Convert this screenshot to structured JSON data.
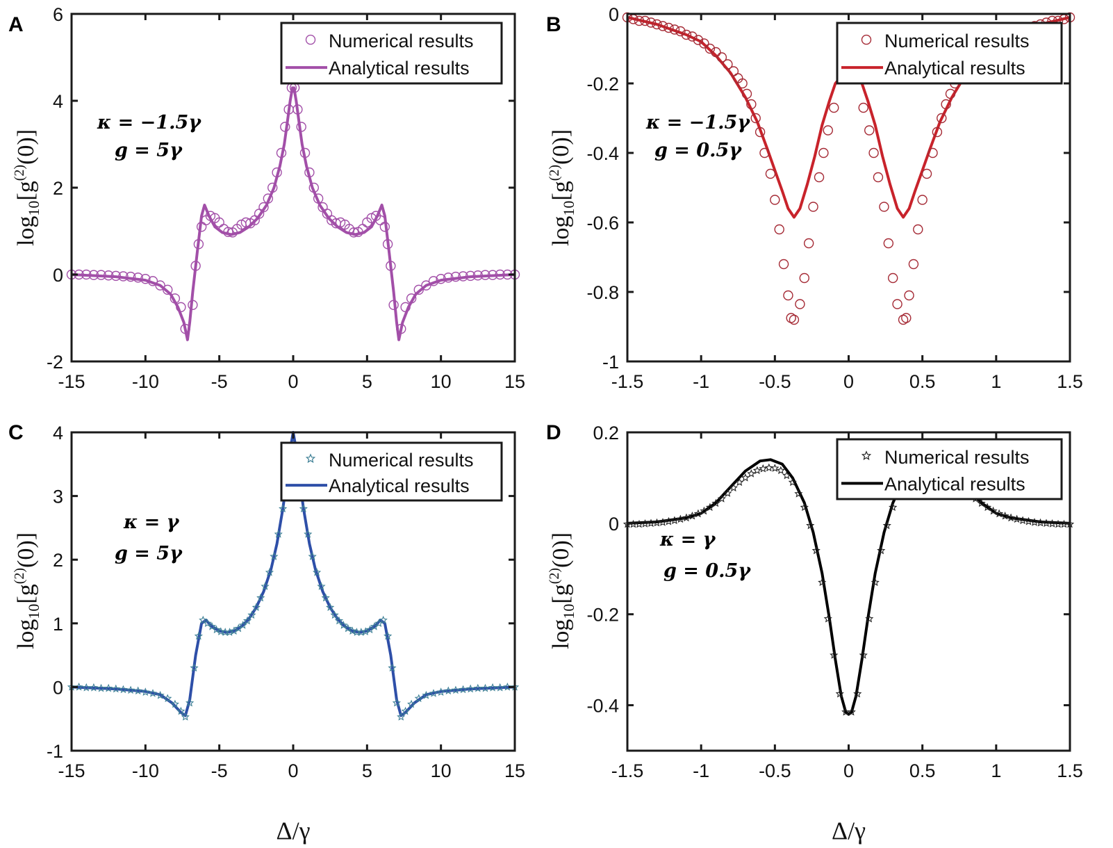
{
  "chart_data": [
    {
      "panel": "A",
      "type": "line",
      "xlim": [
        -15,
        15
      ],
      "ylim": [
        -2,
        6
      ],
      "xticks": [
        "-15",
        "-10",
        "-5",
        "0",
        "5",
        "10",
        "15"
      ],
      "xtick_values": [
        -15,
        -10,
        -5,
        0,
        5,
        10,
        15
      ],
      "yticks": [
        "-2",
        "0",
        "2",
        "4",
        "6"
      ],
      "ytick_values": [
        -2,
        0,
        2,
        4,
        6
      ],
      "ylabel": {
        "pre": "log",
        "sub": "10",
        "mid": "[g",
        "sup": "(2)",
        "post": "(0)]"
      },
      "annotation": [
        "κ = −1.5γ",
        "g = 5γ"
      ],
      "legend": {
        "position": "top-right",
        "numerical": "Numerical results",
        "analytical": "Analytical results"
      },
      "color": "#a24fa8",
      "marker": "circle",
      "symmetric": true,
      "analytical": {
        "x": [
          -15,
          -12,
          -10,
          -9,
          -8.3,
          -7.8,
          -7.4,
          -7.15,
          -7.0,
          -6.8,
          -6.5,
          -6.2,
          -6.0,
          -5.7,
          -5.3,
          -4.8,
          -4.2,
          -3.6,
          -3,
          -2.4,
          -1.8,
          -1.3,
          -0.9,
          -0.6,
          -0.4,
          -0.2,
          -0.05,
          0
        ],
        "y": [
          0,
          -0.05,
          -0.13,
          -0.25,
          -0.45,
          -0.75,
          -1.1,
          -1.5,
          -1.1,
          -0.4,
          0.5,
          1.35,
          1.6,
          1.35,
          1.1,
          0.97,
          0.92,
          0.97,
          1.1,
          1.3,
          1.6,
          2.0,
          2.5,
          3.0,
          3.5,
          4.0,
          4.3,
          4.25
        ]
      },
      "numerical": {
        "x": [
          -15,
          -14.5,
          -14,
          -13.5,
          -13,
          -12.5,
          -12,
          -11.5,
          -11,
          -10.5,
          -10,
          -9.5,
          -9,
          -8.5,
          -8,
          -7.6,
          -7.3,
          -6.8,
          -6.6,
          -6.4,
          -6.2,
          -5.9,
          -5.6,
          -5.3,
          -5.0,
          -4.7,
          -4.4,
          -4.1,
          -3.8,
          -3.5,
          -3.2,
          -2.9,
          -2.6,
          -2.3,
          -2.0,
          -1.7,
          -1.4,
          -1.1,
          -0.8,
          -0.55,
          -0.3,
          -0.1
        ],
        "y": [
          0,
          0,
          0,
          -0.01,
          -0.01,
          -0.02,
          -0.03,
          -0.04,
          -0.05,
          -0.07,
          -0.1,
          -0.15,
          -0.25,
          -0.35,
          -0.55,
          -0.75,
          -1.25,
          -0.7,
          0.2,
          0.7,
          1.1,
          1.25,
          1.35,
          1.3,
          1.2,
          1.05,
          0.98,
          0.97,
          1.05,
          1.15,
          1.2,
          1.18,
          1.25,
          1.4,
          1.55,
          1.75,
          2.0,
          2.35,
          2.8,
          3.4,
          3.8,
          4.3
        ]
      }
    },
    {
      "panel": "B",
      "type": "line",
      "xlim": [
        -1.5,
        1.5
      ],
      "ylim": [
        -1,
        0
      ],
      "xticks": [
        "-1.5",
        "-1",
        "-0.5",
        "0",
        "0.5",
        "1",
        "1.5"
      ],
      "xtick_values": [
        -1.5,
        -1,
        -0.5,
        0,
        0.5,
        1,
        1.5
      ],
      "yticks": [
        "-1",
        "-0.8",
        "-0.6",
        "-0.4",
        "-0.2",
        "0"
      ],
      "ytick_values": [
        -1,
        -0.8,
        -0.6,
        -0.4,
        -0.2,
        0
      ],
      "ylabel": {
        "pre": "log",
        "sub": "10",
        "mid": "[g",
        "sup": "(2)",
        "post": "(0)]"
      },
      "annotation": [
        "κ = −1.5γ",
        "g = 0.5γ"
      ],
      "legend": {
        "position": "top-right",
        "numerical": "Numerical results",
        "analytical": "Analytical results"
      },
      "color": "#c8232b",
      "marker_color": "#a52a35",
      "marker": "circle",
      "symmetric": true,
      "analytical": {
        "x": [
          -1.5,
          -1.3,
          -1.1,
          -1.0,
          -0.9,
          -0.8,
          -0.7,
          -0.62,
          -0.55,
          -0.5,
          -0.45,
          -0.41,
          -0.37,
          -0.33,
          -0.28,
          -0.23,
          -0.18,
          -0.13,
          -0.09,
          -0.05,
          0
        ],
        "y": [
          -0.01,
          -0.03,
          -0.06,
          -0.08,
          -0.12,
          -0.17,
          -0.24,
          -0.31,
          -0.39,
          -0.45,
          -0.51,
          -0.56,
          -0.585,
          -0.56,
          -0.49,
          -0.41,
          -0.32,
          -0.25,
          -0.2,
          -0.18,
          -0.18
        ]
      },
      "numerical": {
        "x": [
          -1.5,
          -1.46,
          -1.42,
          -1.38,
          -1.34,
          -1.3,
          -1.26,
          -1.22,
          -1.18,
          -1.14,
          -1.1,
          -1.06,
          -1.02,
          -0.98,
          -0.94,
          -0.9,
          -0.86,
          -0.82,
          -0.78,
          -0.75,
          -0.72,
          -0.69,
          -0.66,
          -0.63,
          -0.6,
          -0.57,
          -0.53,
          -0.5,
          -0.47,
          -0.44,
          -0.41,
          -0.39,
          -0.37,
          -0.33,
          -0.3,
          -0.27,
          -0.24,
          -0.2,
          -0.17,
          -0.14,
          -0.1
        ],
        "y": [
          -0.01,
          -0.015,
          -0.02,
          -0.02,
          -0.025,
          -0.03,
          -0.035,
          -0.04,
          -0.045,
          -0.05,
          -0.06,
          -0.065,
          -0.075,
          -0.085,
          -0.1,
          -0.11,
          -0.125,
          -0.145,
          -0.165,
          -0.185,
          -0.2,
          -0.23,
          -0.26,
          -0.3,
          -0.34,
          -0.4,
          -0.46,
          -0.535,
          -0.62,
          -0.72,
          -0.81,
          -0.875,
          -0.88,
          -0.835,
          -0.76,
          -0.66,
          -0.555,
          -0.47,
          -0.4,
          -0.335,
          -0.27
        ]
      }
    },
    {
      "panel": "C",
      "type": "line",
      "xlim": [
        -15,
        15
      ],
      "ylim": [
        -1,
        4
      ],
      "xticks": [
        "-15",
        "-10",
        "-5",
        "0",
        "5",
        "10",
        "15"
      ],
      "xtick_values": [
        -15,
        -10,
        -5,
        0,
        5,
        10,
        15
      ],
      "yticks": [
        "-1",
        "0",
        "1",
        "2",
        "3",
        "4"
      ],
      "ytick_values": [
        -1,
        0,
        1,
        2,
        3,
        4
      ],
      "ylabel": {
        "pre": "log",
        "sub": "10",
        "mid": "[g",
        "sup": "(2)",
        "post": "(0)]"
      },
      "xlabel": "Δ/γ",
      "annotation": [
        "κ = γ",
        "g = 5γ"
      ],
      "legend": {
        "position": "top-right",
        "numerical": "Numerical results",
        "analytical": "Analytical results"
      },
      "color": "#2e4fa8",
      "marker_color": "#3d7f95",
      "marker": "star",
      "symmetric": true,
      "analytical": {
        "x": [
          -15,
          -12,
          -10,
          -9,
          -8.2,
          -7.6,
          -7.3,
          -7.0,
          -6.6,
          -6.2,
          -5.9,
          -5.5,
          -5.0,
          -4.5,
          -4.0,
          -3.5,
          -3.0,
          -2.5,
          -2.0,
          -1.5,
          -1.1,
          -0.7,
          -0.4,
          -0.15,
          0
        ],
        "y": [
          0,
          -0.03,
          -0.07,
          -0.12,
          -0.25,
          -0.4,
          -0.45,
          -0.2,
          0.5,
          1.0,
          1.05,
          0.95,
          0.88,
          0.86,
          0.88,
          0.95,
          1.07,
          1.25,
          1.5,
          1.85,
          2.25,
          2.8,
          3.3,
          3.8,
          4.0
        ]
      },
      "numerical": {
        "x": [
          -15,
          -14.5,
          -14,
          -13.5,
          -13,
          -12.5,
          -12,
          -11.5,
          -11,
          -10.5,
          -10,
          -9.5,
          -9,
          -8.5,
          -8,
          -7.6,
          -7.3,
          -7.0,
          -6.7,
          -6.4,
          -6.1,
          -5.8,
          -5.5,
          -5.2,
          -4.9,
          -4.6,
          -4.3,
          -4.0,
          -3.7,
          -3.4,
          -3.1,
          -2.8,
          -2.5,
          -2.2,
          -1.9,
          -1.6,
          -1.3,
          -1.0,
          -0.7,
          -0.4
        ],
        "y": [
          0,
          0,
          -0.01,
          -0.01,
          -0.02,
          -0.02,
          -0.03,
          -0.04,
          -0.05,
          -0.06,
          -0.08,
          -0.1,
          -0.13,
          -0.18,
          -0.27,
          -0.38,
          -0.47,
          -0.25,
          0.3,
          0.8,
          1.05,
          1.0,
          0.95,
          0.9,
          0.87,
          0.86,
          0.86,
          0.88,
          0.92,
          0.97,
          1.04,
          1.13,
          1.25,
          1.4,
          1.58,
          1.8,
          2.05,
          2.4,
          2.8,
          3.35
        ]
      }
    },
    {
      "panel": "D",
      "type": "line",
      "xlim": [
        -1.5,
        1.5
      ],
      "ylim": [
        -0.5,
        0.2
      ],
      "xticks": [
        "-1.5",
        "-1",
        "-0.5",
        "0",
        "0.5",
        "1",
        "1.5"
      ],
      "xtick_values": [
        -1.5,
        -1,
        -0.5,
        0,
        0.5,
        1,
        1.5
      ],
      "yticks": [
        "-0.4",
        "-0.2",
        "0",
        "0.2"
      ],
      "ytick_values": [
        -0.4,
        -0.2,
        0,
        0.2
      ],
      "ylabel": {
        "pre": "log",
        "sub": "10",
        "mid": "[g",
        "sup": "(2)",
        "post": "(0)]"
      },
      "xlabel": "Δ/γ",
      "annotation": [
        "κ = γ",
        "g = 0.5γ"
      ],
      "legend": {
        "position": "top-right",
        "numerical": "Numerical results",
        "analytical": "Analytical results"
      },
      "color": "#000000",
      "marker_color": "#222222",
      "marker": "star",
      "symmetric": true,
      "analytical": {
        "x": [
          -1.5,
          -1.3,
          -1.1,
          -1.0,
          -0.9,
          -0.8,
          -0.7,
          -0.6,
          -0.53,
          -0.45,
          -0.38,
          -0.3,
          -0.24,
          -0.18,
          -0.13,
          -0.09,
          -0.05,
          -0.02,
          0
        ],
        "y": [
          0,
          0.003,
          0.012,
          0.022,
          0.045,
          0.08,
          0.115,
          0.137,
          0.14,
          0.13,
          0.1,
          0.045,
          -0.02,
          -0.11,
          -0.21,
          -0.3,
          -0.38,
          -0.415,
          -0.42
        ]
      },
      "numerical": {
        "x": [
          -1.5,
          -1.46,
          -1.42,
          -1.38,
          -1.34,
          -1.3,
          -1.26,
          -1.22,
          -1.18,
          -1.14,
          -1.1,
          -1.06,
          -1.02,
          -0.98,
          -0.94,
          -0.9,
          -0.86,
          -0.82,
          -0.78,
          -0.74,
          -0.7,
          -0.66,
          -0.62,
          -0.58,
          -0.54,
          -0.5,
          -0.46,
          -0.42,
          -0.38,
          -0.34,
          -0.3,
          -0.26,
          -0.22,
          -0.18,
          -0.14,
          -0.1,
          -0.06,
          -0.02
        ],
        "y": [
          -0.002,
          -0.002,
          -0.002,
          -0.001,
          0,
          0.001,
          0.002,
          0.004,
          0.006,
          0.009,
          0.012,
          0.016,
          0.021,
          0.027,
          0.035,
          0.044,
          0.054,
          0.066,
          0.078,
          0.09,
          0.1,
          0.109,
          0.116,
          0.12,
          0.122,
          0.121,
          0.116,
          0.105,
          0.09,
          0.065,
          0.035,
          -0.005,
          -0.06,
          -0.13,
          -0.21,
          -0.29,
          -0.375,
          -0.415
        ]
      }
    }
  ],
  "panel_labels": [
    "A",
    "B",
    "C",
    "D"
  ],
  "xlabel": "Δ/γ"
}
